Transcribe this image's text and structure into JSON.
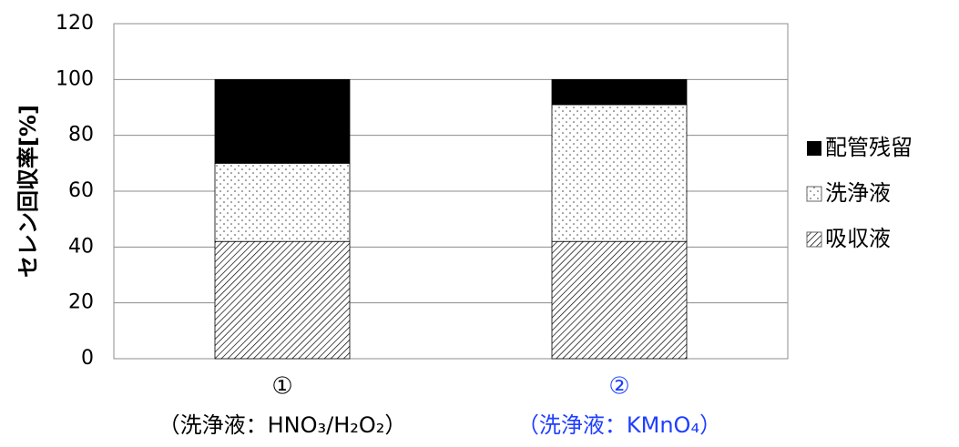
{
  "chart_data": {
    "type": "stacked_bar",
    "y_label": "セレン回収率[%]",
    "categories": [
      "①",
      "②"
    ],
    "category_notes": [
      "（洗浄液：HNO₃/H₂O₂）",
      "（洗浄液：KMnO₄）"
    ],
    "category_label_colors": [
      "#000000",
      "#1f3fff"
    ],
    "series": [
      {
        "name": "吸収液",
        "color": "#000000",
        "pattern": "hatch",
        "values": [
          42,
          42
        ]
      },
      {
        "name": "洗浄液",
        "color": "#000000",
        "pattern": "dots",
        "values": [
          28,
          49
        ]
      },
      {
        "name": "配管残留",
        "color": "#000000",
        "pattern": "solid",
        "values": [
          30,
          9
        ]
      }
    ],
    "ylim": [
      0,
      120
    ],
    "yticks": [
      0,
      20,
      40,
      60,
      80,
      100,
      120
    ],
    "grid": true,
    "legend": "right"
  }
}
